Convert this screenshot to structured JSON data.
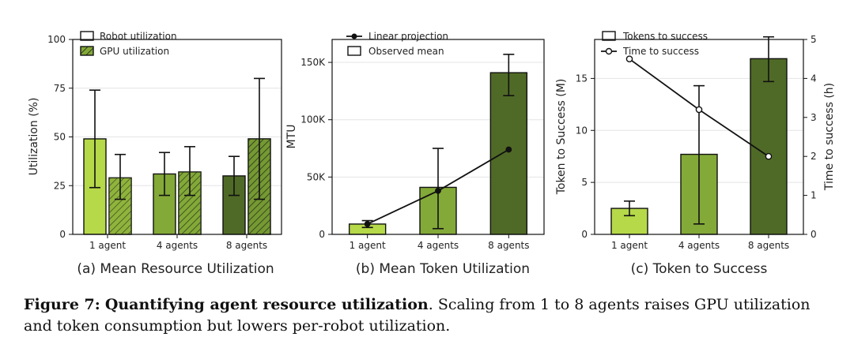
{
  "colors": {
    "agent1": "#b5d949",
    "agent4": "#83a938",
    "agent8": "#4f6a26",
    "edge": "#111111"
  },
  "caption": {
    "label": "Figure 7:",
    "bold": "Quantifying agent resource utilization",
    "text": ". Scaling from 1 to 8 agents raises GPU utilization and token consumption but lowers per-robot utilization."
  },
  "chart_data": [
    {
      "type": "bar",
      "title": "(a) Mean Resource Utilization",
      "ylabel": "Utilization (%)",
      "xlabel": "",
      "ylim": [
        0,
        100
      ],
      "yticks": [
        "0",
        "25",
        "50",
        "75",
        "100"
      ],
      "grid": true,
      "legend_position": "top-left",
      "categories": [
        "1 agent",
        "4 agents",
        "8 agents"
      ],
      "series": [
        {
          "name": "Robot utilization",
          "hatch": false,
          "values": [
            49,
            31,
            30
          ],
          "err_low": [
            24,
            20,
            20
          ],
          "err_high": [
            74,
            42,
            40
          ]
        },
        {
          "name": "GPU utilization",
          "hatch": true,
          "values": [
            29,
            32,
            49
          ],
          "err_low": [
            18,
            20,
            18
          ],
          "err_high": [
            41,
            45,
            80
          ]
        }
      ]
    },
    {
      "type": "bar",
      "title": "(b) Mean Token Utilization",
      "ylabel": "MTU",
      "xlabel": "",
      "ylim": [
        0,
        170000
      ],
      "yticks": [
        "0",
        "50K",
        "100K",
        "150K"
      ],
      "grid": true,
      "legend_position": "top-left",
      "categories": [
        "1 agent",
        "4 agents",
        "8 agents"
      ],
      "series": [
        {
          "name": "Observed mean",
          "type": "bar",
          "values": [
            9000,
            41000,
            141000
          ],
          "err_low": [
            6000,
            5000,
            121000
          ],
          "err_high": [
            12000,
            75000,
            157000
          ]
        },
        {
          "name": "Linear projection",
          "type": "line",
          "values": [
            9000,
            38000,
            74000
          ]
        }
      ]
    },
    {
      "type": "bar",
      "title": "(c) Token to Success",
      "ylabel": "Token to Success (M)",
      "y2label": "Time to success (h)",
      "xlabel": "",
      "ylim": [
        0,
        18.75
      ],
      "y2lim": [
        0,
        5
      ],
      "yticks": [
        "0",
        "5",
        "10",
        "15"
      ],
      "y2ticks": [
        "0",
        "1",
        "2",
        "3",
        "4",
        "5"
      ],
      "grid": true,
      "legend_position": "top-left",
      "categories": [
        "1 agent",
        "4 agents",
        "8 agents"
      ],
      "series": [
        {
          "name": "Tokens to success",
          "type": "bar",
          "axis": "left",
          "values": [
            2.5,
            7.7,
            16.9
          ],
          "err_low": [
            1.8,
            1.0,
            14.7
          ],
          "err_high": [
            3.2,
            14.3,
            19.0
          ]
        },
        {
          "name": "Time to success",
          "type": "line",
          "axis": "right",
          "values": [
            4.5,
            3.2,
            2.0
          ]
        }
      ]
    }
  ]
}
